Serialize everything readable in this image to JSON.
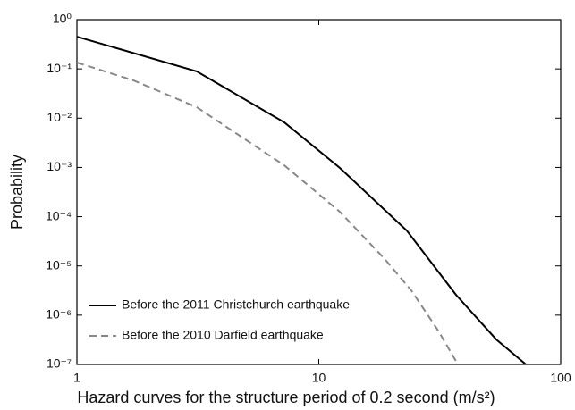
{
  "chart_data": {
    "type": "line",
    "x_label": "Hazard curves for the structure period of 0.2 second (m/s²)",
    "y_label": "Probability",
    "xscale": "log",
    "yscale": "log",
    "xlim": [
      1,
      100
    ],
    "ylim": [
      1e-07,
      1
    ],
    "xticks": [
      1,
      10,
      100
    ],
    "yticks": [
      {
        "value": 1,
        "label": "10⁰"
      },
      {
        "value": 0.1,
        "label": "10⁻¹"
      },
      {
        "value": 0.01,
        "label": "10⁻²"
      },
      {
        "value": 0.001,
        "label": "10⁻³"
      },
      {
        "value": 0.0001,
        "label": "10⁻⁴"
      },
      {
        "value": 1e-05,
        "label": "10⁻⁵"
      },
      {
        "value": 1e-06,
        "label": "10⁻⁶"
      },
      {
        "value": 1e-07,
        "label": "10⁻⁷"
      }
    ],
    "legend": "lower left",
    "series": [
      {
        "name": "Before the 2011 Christchurch earthquake",
        "color": "#000000",
        "dash": "solid",
        "x": [
          1,
          3.13,
          7.2,
          12.2,
          23.1,
          36.9,
          54.2,
          71.8
        ],
        "values": [
          0.45,
          0.089,
          0.0082,
          0.00098,
          5.2e-05,
          2.6e-06,
          3.2e-07,
          1e-07
        ]
      },
      {
        "name": "Before the 2010 Darfield earthquake",
        "color": "#888888",
        "dash": "dashed",
        "x": [
          1,
          1.72,
          3.13,
          7.2,
          12.2,
          18.7,
          24.1,
          31.2,
          37.6
        ],
        "values": [
          0.135,
          0.058,
          0.0167,
          0.0011,
          0.000126,
          1.4e-05,
          3.2e-06,
          4.8e-07,
          1e-07
        ]
      }
    ]
  }
}
